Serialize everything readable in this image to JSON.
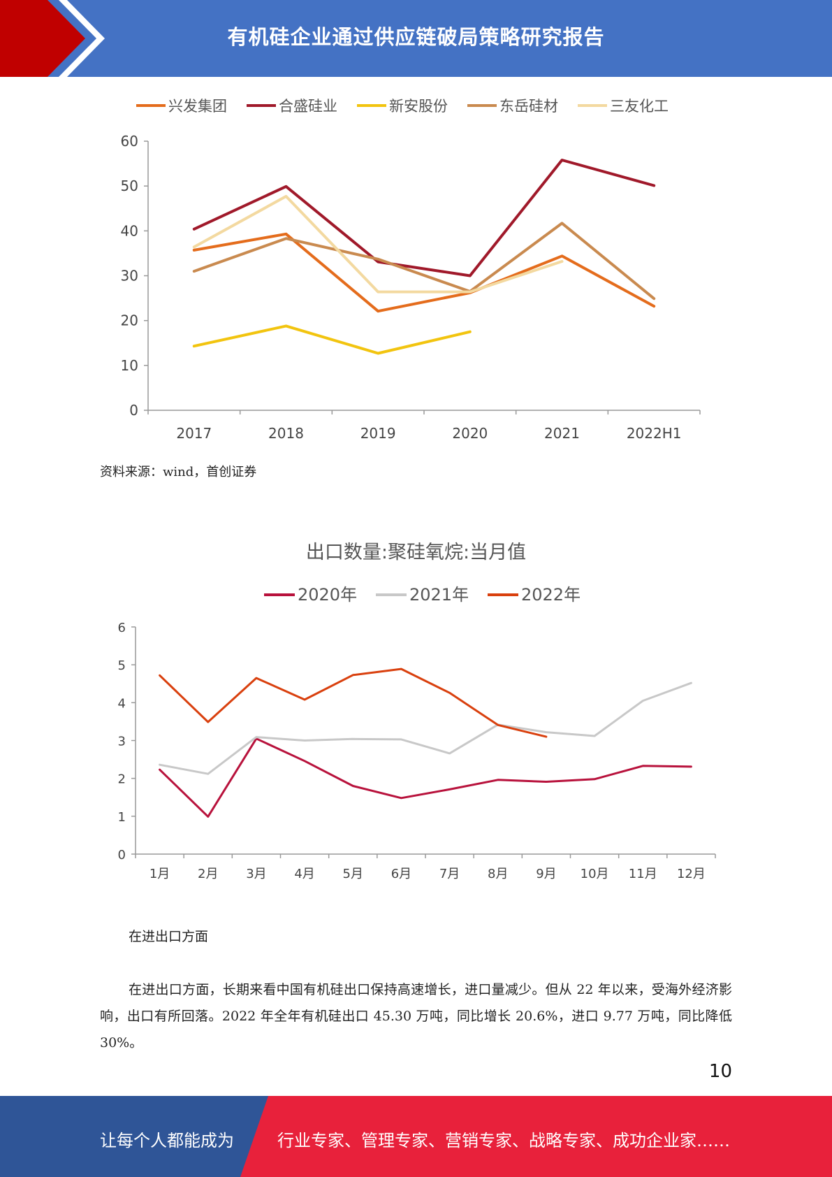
{
  "header": {
    "title": "有机硅企业通过供应链破局策略研究报告"
  },
  "charts": [
    {
      "type": "line",
      "legend": [
        "兴发集团",
        "合盛硅业",
        "新安股份",
        "东岳硅材",
        "三友化工"
      ],
      "categories": [
        "2017",
        "2018",
        "2019",
        "2020",
        "2021",
        "2022H1"
      ],
      "y_ticks": [
        "0",
        "10",
        "20",
        "30",
        "40",
        "50",
        "60"
      ],
      "ylim": [
        0,
        60
      ],
      "series": [
        {
          "name": "兴发集团",
          "color": "#e46c1c",
          "values": [
            35.7,
            39.3,
            22.1,
            26.2,
            34.4,
            23.2
          ]
        },
        {
          "name": "合盛硅业",
          "color": "#a0192a",
          "values": [
            40.4,
            49.9,
            33.1,
            30.0,
            55.8,
            50.1
          ]
        },
        {
          "name": "新安股份",
          "color": "#f2c40f",
          "values": [
            14.3,
            18.8,
            12.7,
            17.5,
            null,
            null
          ]
        },
        {
          "name": "东岳硅材",
          "color": "#c98a4f",
          "values": [
            31.0,
            38.3,
            33.7,
            26.5,
            41.7,
            24.9
          ]
        },
        {
          "name": "三友化工",
          "color": "#f3d9a0",
          "values": [
            36.4,
            47.7,
            26.4,
            26.4,
            33.2,
            null
          ]
        }
      ]
    },
    {
      "type": "line",
      "title": "出口数量:聚硅氧烷:当月值",
      "legend": [
        "2020年",
        "2021年",
        "2022年"
      ],
      "categories": [
        "1月",
        "2月",
        "3月",
        "4月",
        "5月",
        "6月",
        "7月",
        "8月",
        "9月",
        "10月",
        "11月",
        "12月"
      ],
      "y_ticks": [
        "0",
        "1",
        "2",
        "3",
        "4",
        "5",
        "6"
      ],
      "ylim": [
        0,
        6
      ],
      "series": [
        {
          "name": "2020年",
          "color": "#b8123c",
          "values": [
            2.23,
            0.99,
            3.05,
            2.46,
            1.8,
            1.48,
            1.71,
            1.96,
            1.91,
            1.98,
            2.33,
            2.31
          ]
        },
        {
          "name": "2021年",
          "color": "#c8c8c8",
          "values": [
            2.36,
            2.12,
            3.09,
            3.0,
            3.04,
            3.03,
            2.66,
            3.42,
            3.22,
            3.12,
            4.05,
            4.52
          ]
        },
        {
          "name": "2022年",
          "color": "#d9400e",
          "values": [
            4.72,
            3.49,
            4.65,
            4.08,
            4.73,
            4.89,
            4.26,
            3.41,
            3.1,
            null,
            null,
            null
          ]
        }
      ]
    }
  ],
  "source": "资料来源：wind，首创证券",
  "body": {
    "heading": "在进出口方面",
    "paragraph": "在进出口方面，长期来看中国有机硅出口保持高速增长，进口量减少。但从 22 年以来，受海外经济影响，出口有所回落。2022 年全年有机硅出口 45.30 万吨，同比增长 20.6%，进口 9.77 万吨，同比降低 30%。"
  },
  "page_number": "10",
  "footer": {
    "left": "让每个人都能成为",
    "right": "行业专家、管理专家、营销专家、战略专家、成功企业家……",
    "colors": {
      "blue": "#2f5597",
      "red": "#e8213b"
    }
  }
}
